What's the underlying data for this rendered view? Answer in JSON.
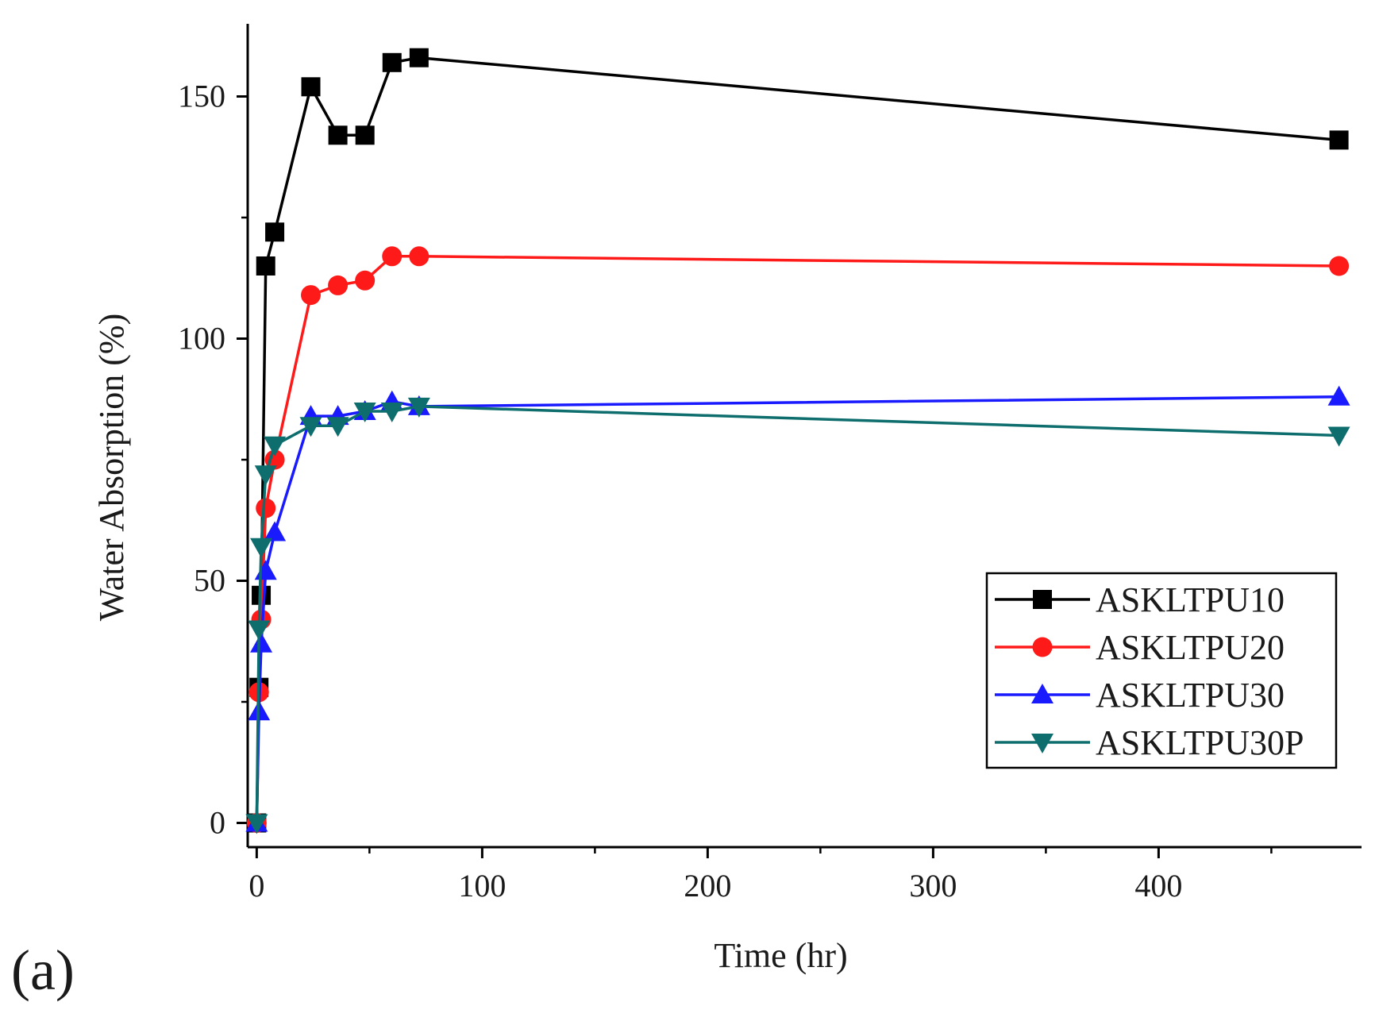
{
  "panel_label": "(a)",
  "chart_data": {
    "type": "line",
    "title": "",
    "xlabel": "Time (hr)",
    "ylabel": "Water Absorption (%)",
    "xlim": [
      -4,
      490
    ],
    "ylim": [
      -5,
      165
    ],
    "x_ticks": [
      0,
      100,
      200,
      300,
      400
    ],
    "y_ticks": [
      0,
      50,
      100,
      150
    ],
    "grid": false,
    "legend_position": "lower-right",
    "x": [
      0,
      1,
      2,
      4,
      8,
      24,
      36,
      48,
      60,
      72,
      480
    ],
    "series": [
      {
        "name": "ASKLTPU10",
        "color": "#000000",
        "marker": "square",
        "values": [
          0,
          28,
          47,
          115,
          122,
          152,
          142,
          142,
          157,
          158,
          141
        ]
      },
      {
        "name": "ASKLTPU20",
        "color": "#ff1a1a",
        "marker": "circle",
        "values": [
          0,
          27,
          42,
          65,
          75,
          109,
          111,
          112,
          117,
          117,
          115
        ]
      },
      {
        "name": "ASKLTPU30",
        "color": "#1a1aff",
        "marker": "triangle-up",
        "values": [
          0,
          23,
          37,
          52,
          60,
          84,
          84,
          85,
          87,
          86,
          88
        ]
      },
      {
        "name": "ASKLTPU30P",
        "color": "#0e6e6e",
        "marker": "triangle-down",
        "values": [
          0,
          40,
          57,
          72,
          78,
          82,
          82,
          85,
          85,
          86,
          80
        ]
      }
    ]
  }
}
